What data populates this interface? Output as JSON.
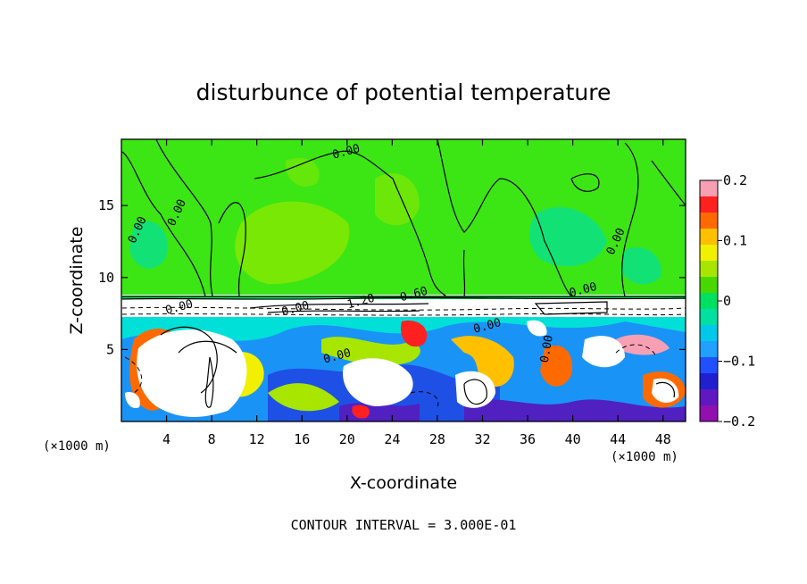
{
  "chart_data": {
    "type": "heatmap",
    "title": "disturbunce of potential temperature",
    "xlabel": "X-coordinate",
    "ylabel": "Z-coordinate",
    "x_unit": "(×1000 m)",
    "y_unit": "(×1000 m)",
    "xlim": [
      0,
      50
    ],
    "ylim": [
      0,
      19.6
    ],
    "xticks": [
      4,
      8,
      12,
      16,
      20,
      24,
      28,
      32,
      36,
      40,
      44,
      48
    ],
    "yticks": [
      5,
      10,
      15
    ],
    "colorbar": {
      "range": [
        -0.2,
        0.2
      ],
      "ticks": [
        0.2,
        0.1,
        0,
        -0.1,
        -0.2
      ],
      "tick_labels": [
        "0.2",
        "0.1",
        "0",
        "−0.1",
        "−0.2"
      ],
      "colors": [
        "#f7a0b4",
        "#ff2020",
        "#ff6a00",
        "#ffc000",
        "#f0f000",
        "#a8e600",
        "#48d800",
        "#00e060",
        "#00e0a0",
        "#00c8e8",
        "#20a0ff",
        "#2050ff",
        "#2020d0",
        "#6018c0",
        "#9010b0"
      ]
    },
    "contour_labels": [
      {
        "text": "0.00",
        "x": 20,
        "z": 18.5
      },
      {
        "text": "0.00",
        "x": 5.2,
        "z": 14.4
      },
      {
        "text": "0.00",
        "x": 1.7,
        "z": 13.2
      },
      {
        "text": "0.00",
        "x": 44.1,
        "z": 12.4
      },
      {
        "text": "0.60",
        "x": 26,
        "z": 8.6
      },
      {
        "text": "0.00",
        "x": 41,
        "z": 8.9
      },
      {
        "text": "0.00",
        "x": 5.2,
        "z": 7.7
      },
      {
        "text": "0.00",
        "x": 15.5,
        "z": 7.6
      },
      {
        "text": "1.20",
        "x": 21.3,
        "z": 8.1
      },
      {
        "text": "0.00",
        "x": 32.5,
        "z": 6.4
      },
      {
        "text": "0.00",
        "x": 38,
        "z": 5
      },
      {
        "text": "0.00",
        "x": 19.2,
        "z": 4.3
      }
    ],
    "footer": "CONTOUR INTERVAL = 3.000E-01"
  }
}
